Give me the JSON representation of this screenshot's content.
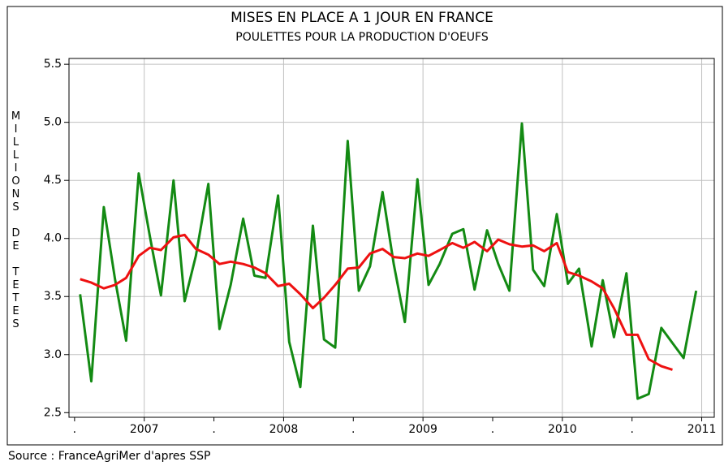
{
  "chart_data": {
    "type": "line",
    "title": "MISES EN PLACE A 1 JOUR EN FRANCE",
    "subtitle": "POULETTES POUR LA PRODUCTION D'OEUFS",
    "y_label": "MILLIONS DE TETES",
    "source": "Source : FranceAgriMer d'apres SSP",
    "xlim": [
      2006.46,
      2011.09
    ],
    "xticks": [
      {
        "value": 2006.5,
        "label": "."
      },
      2007,
      {
        "value": 2007.5,
        "label": "."
      },
      2008,
      {
        "value": 2008.5,
        "label": "."
      },
      2009,
      {
        "value": 2009.5,
        "label": "."
      },
      2010,
      {
        "value": 2010.5,
        "label": "."
      },
      2011
    ],
    "ylim": [
      2.46,
      5.55
    ],
    "yticks": [
      {
        "value": 2.5,
        "label": "2.5"
      },
      {
        "value": 3.0,
        "label": "3.0"
      },
      {
        "value": 3.5,
        "label": "3.5"
      },
      {
        "value": 4.0,
        "label": "4.0"
      },
      {
        "value": 4.5,
        "label": "4.5"
      },
      {
        "value": 5.0,
        "label": "5.0"
      },
      {
        "value": 5.5,
        "label": "5.5"
      }
    ],
    "grid": true,
    "x": [
      2006.54,
      2006.62,
      2006.71,
      2006.79,
      2006.87,
      2006.96,
      2007.04,
      2007.12,
      2007.21,
      2007.29,
      2007.37,
      2007.46,
      2007.54,
      2007.62,
      2007.71,
      2007.79,
      2007.87,
      2007.96,
      2008.04,
      2008.12,
      2008.21,
      2008.29,
      2008.37,
      2008.46,
      2008.54,
      2008.62,
      2008.71,
      2008.79,
      2008.87,
      2008.96,
      2009.04,
      2009.12,
      2009.21,
      2009.29,
      2009.37,
      2009.46,
      2009.54,
      2009.62,
      2009.71,
      2009.79,
      2009.87,
      2009.96,
      2010.04,
      2010.12,
      2010.21,
      2010.29,
      2010.37,
      2010.46,
      2010.54,
      2010.62,
      2010.71,
      2010.79,
      2010.87,
      2010.96
    ],
    "series": [
      {
        "color": "#138a13",
        "values": [
          3.52,
          2.77,
          4.27,
          3.65,
          3.12,
          4.56,
          4.02,
          3.51,
          4.5,
          3.46,
          3.85,
          4.47,
          3.22,
          3.6,
          4.17,
          3.68,
          3.66,
          4.37,
          3.11,
          2.72,
          4.11,
          3.13,
          3.06,
          4.84,
          3.55,
          3.76,
          4.4,
          3.78,
          3.28,
          4.51,
          3.6,
          3.78,
          4.04,
          4.08,
          3.56,
          4.07,
          3.78,
          3.55,
          4.99,
          3.73,
          3.59,
          4.21,
          3.61,
          3.74,
          3.07,
          3.64,
          3.15,
          3.7,
          2.62,
          2.66,
          3.23,
          3.1,
          2.97,
          3.55
        ]
      },
      {
        "color": "#ee1111",
        "values": [
          3.65,
          3.62,
          3.57,
          3.6,
          3.66,
          3.85,
          3.92,
          3.9,
          4.01,
          4.03,
          3.91,
          3.86,
          3.78,
          3.8,
          3.78,
          3.75,
          3.7,
          3.59,
          3.61,
          3.52,
          3.4,
          3.49,
          3.6,
          3.74,
          3.75,
          3.87,
          3.91,
          3.84,
          3.83,
          3.87,
          3.85,
          3.9,
          3.96,
          3.92,
          3.97,
          3.89,
          3.99,
          3.95,
          3.93,
          3.94,
          3.89,
          3.96,
          3.71,
          3.68,
          3.63,
          3.57,
          3.4,
          3.17,
          3.17,
          2.96,
          2.9,
          2.87,
          null,
          null
        ]
      }
    ]
  }
}
